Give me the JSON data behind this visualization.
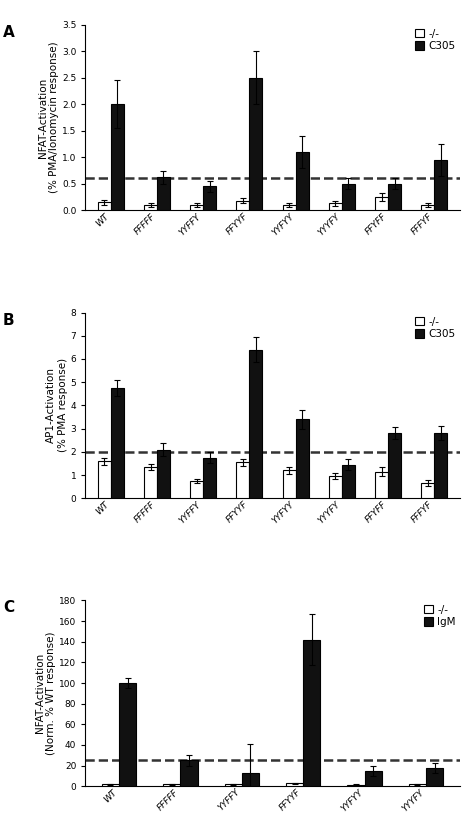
{
  "panel_A": {
    "title": "A",
    "categories": [
      "WT",
      "FFFFF",
      "YYFFY",
      "FFYYF",
      "YYFYY",
      "YYYFY",
      "FFYFF",
      "FFFYF"
    ],
    "empty_vals": [
      0.15,
      0.1,
      0.1,
      0.18,
      0.1,
      0.13,
      0.25,
      0.1
    ],
    "empty_errs": [
      0.04,
      0.03,
      0.03,
      0.05,
      0.03,
      0.04,
      0.07,
      0.03
    ],
    "filled_vals": [
      2.0,
      0.62,
      0.45,
      2.5,
      1.1,
      0.5,
      0.5,
      0.95
    ],
    "filled_errs": [
      0.45,
      0.12,
      0.1,
      0.5,
      0.3,
      0.1,
      0.1,
      0.3
    ],
    "ylabel": "NFAT-Activation\n(% PMA/Ionomycin response)",
    "ylim": [
      0,
      3.5
    ],
    "yticks": [
      0.0,
      0.5,
      1.0,
      1.5,
      2.0,
      2.5,
      3.0,
      3.5
    ],
    "dashed_line": 0.6,
    "legend_labels": [
      "-/-",
      "C305"
    ]
  },
  "panel_B": {
    "title": "B",
    "categories": [
      "WT",
      "FFFFF",
      "YYFFY",
      "FFYYF",
      "YYFYY",
      "YYYFY",
      "FFYFF",
      "FFFYF"
    ],
    "empty_vals": [
      1.6,
      1.35,
      0.75,
      1.55,
      1.2,
      0.97,
      1.15,
      0.65
    ],
    "empty_errs": [
      0.15,
      0.12,
      0.1,
      0.15,
      0.15,
      0.12,
      0.18,
      0.12
    ],
    "filled_vals": [
      4.75,
      2.1,
      1.75,
      6.4,
      3.4,
      1.45,
      2.8,
      2.8
    ],
    "filled_errs": [
      0.35,
      0.3,
      0.25,
      0.55,
      0.4,
      0.25,
      0.25,
      0.3
    ],
    "ylabel": "AP1-Activation\n(% PMA response)",
    "ylim": [
      0,
      8
    ],
    "yticks": [
      0,
      1,
      2,
      3,
      4,
      5,
      6,
      7,
      8
    ],
    "dashed_line": 2.0,
    "legend_labels": [
      "-/-",
      "C305"
    ]
  },
  "panel_C": {
    "title": "C",
    "categories": [
      "WT",
      "FFFFF",
      "YYFFY",
      "FFYYF",
      "YYFYY",
      "YYYFY"
    ],
    "empty_vals": [
      2.0,
      2.0,
      2.0,
      3.0,
      1.5,
      2.0
    ],
    "empty_errs": [
      0.5,
      0.5,
      0.5,
      0.5,
      0.5,
      0.5
    ],
    "filled_vals": [
      100.0,
      25.0,
      13.0,
      142.0,
      15.0,
      18.0
    ],
    "filled_errs": [
      5.0,
      5.0,
      28.0,
      25.0,
      5.0,
      5.0
    ],
    "ylabel": "NFAT-Activation\n(Norm. % WT response)",
    "ylim": [
      0,
      180
    ],
    "yticks": [
      0,
      20,
      40,
      60,
      80,
      100,
      120,
      140,
      160,
      180
    ],
    "dashed_line": 25,
    "legend_labels": [
      "-/-",
      "IgM"
    ]
  },
  "bar_width": 0.28,
  "bar_color_empty": "#ffffff",
  "bar_color_filled": "#111111",
  "bar_edgecolor": "#000000",
  "dashed_color": "#333333",
  "figure_facecolor": "#ffffff",
  "tick_fontsize": 6.5,
  "label_fontsize": 7.5,
  "legend_fontsize": 7.5,
  "panel_label_fontsize": 11
}
